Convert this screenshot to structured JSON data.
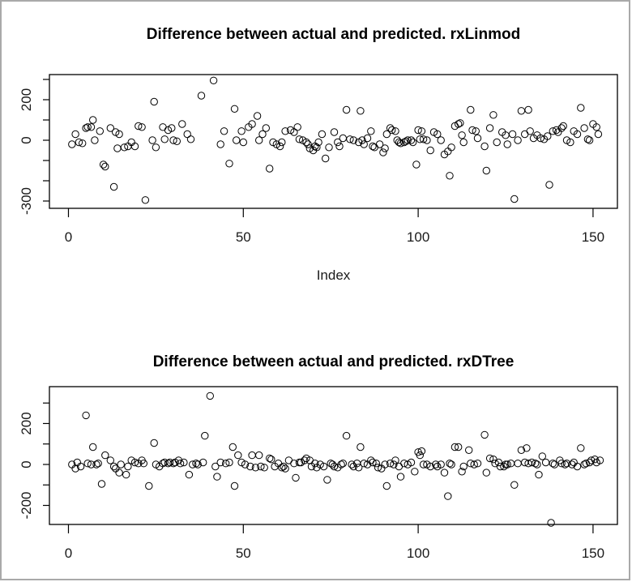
{
  "window": {
    "background": "#ffffff",
    "border_color": "#a9a9a9",
    "plot_stroke_color": "#000000",
    "marker": "open-circle"
  },
  "chart_data": [
    {
      "type": "scatter",
      "title": "Difference between actual and predicted. rxLinmod",
      "xlabel": "Index",
      "ylabel": "",
      "legend": "none",
      "grid": false,
      "xlim": [
        -5.44,
        156.97
      ],
      "ylim": [
        -336,
        324
      ],
      "x_ticks": [
        0,
        50,
        100,
        150
      ],
      "y_ticks": [
        300,
        200,
        100,
        0,
        -100,
        -200,
        -300
      ],
      "y_tick_labeled": [
        {
          "v": 200,
          "text": "200"
        },
        {
          "v": 0,
          "text": "0"
        },
        {
          "v": -300,
          "text": "-300"
        }
      ],
      "points": [
        [
          1,
          -20
        ],
        [
          2,
          30
        ],
        [
          3,
          -10
        ],
        [
          4,
          -15
        ],
        [
          5,
          60
        ],
        [
          5.5,
          65
        ],
        [
          6.5,
          65
        ],
        [
          7,
          100
        ],
        [
          7.5,
          0
        ],
        [
          9,
          45
        ],
        [
          10,
          -120
        ],
        [
          10.5,
          -130
        ],
        [
          12,
          60
        ],
        [
          13,
          -230
        ],
        [
          13.5,
          40
        ],
        [
          14,
          -40
        ],
        [
          14.5,
          30
        ],
        [
          16,
          -35
        ],
        [
          17,
          -30
        ],
        [
          18,
          -10
        ],
        [
          19,
          -30
        ],
        [
          20,
          70
        ],
        [
          21,
          65
        ],
        [
          22,
          -295
        ],
        [
          24,
          0
        ],
        [
          24.5,
          190
        ],
        [
          25,
          -35
        ],
        [
          27,
          65
        ],
        [
          27.5,
          5
        ],
        [
          28.5,
          50
        ],
        [
          29.5,
          60
        ],
        [
          30,
          0
        ],
        [
          31,
          -5
        ],
        [
          32.5,
          80
        ],
        [
          34,
          30
        ],
        [
          35,
          5
        ],
        [
          38,
          220
        ],
        [
          41.5,
          295
        ],
        [
          43.5,
          -20
        ],
        [
          44.5,
          45
        ],
        [
          46,
          -115
        ],
        [
          47.5,
          155
        ],
        [
          48,
          0
        ],
        [
          49.5,
          45
        ],
        [
          50,
          -10
        ],
        [
          51.5,
          65
        ],
        [
          52.5,
          80
        ],
        [
          54,
          120
        ],
        [
          54.5,
          0
        ],
        [
          55.5,
          30
        ],
        [
          56.5,
          60
        ],
        [
          57.5,
          -140
        ],
        [
          58.5,
          -10
        ],
        [
          59.5,
          -20
        ],
        [
          60.5,
          -30
        ],
        [
          61,
          -10
        ],
        [
          62,
          45
        ],
        [
          63.5,
          50
        ],
        [
          64.5,
          40
        ],
        [
          65.5,
          65
        ],
        [
          66,
          5
        ],
        [
          67,
          0
        ],
        [
          68,
          -10
        ],
        [
          68.5,
          -20
        ],
        [
          69,
          -40
        ],
        [
          70,
          -50
        ],
        [
          70.5,
          -30
        ],
        [
          71,
          -35
        ],
        [
          71.5,
          -10
        ],
        [
          72.5,
          30
        ],
        [
          73.5,
          -90
        ],
        [
          74.5,
          -35
        ],
        [
          76,
          40
        ],
        [
          77,
          -10
        ],
        [
          77.5,
          -30
        ],
        [
          78.5,
          10
        ],
        [
          79.5,
          150
        ],
        [
          80.5,
          5
        ],
        [
          81.5,
          0
        ],
        [
          83,
          -10
        ],
        [
          83.5,
          145
        ],
        [
          84,
          0
        ],
        [
          84.5,
          -20
        ],
        [
          85.5,
          10
        ],
        [
          86.5,
          45
        ],
        [
          87,
          -30
        ],
        [
          87.5,
          -35
        ],
        [
          89,
          -20
        ],
        [
          90,
          -60
        ],
        [
          90.5,
          -40
        ],
        [
          91,
          30
        ],
        [
          92,
          60
        ],
        [
          92.5,
          50
        ],
        [
          93.5,
          45
        ],
        [
          94,
          0
        ],
        [
          94.5,
          -10
        ],
        [
          95,
          -15
        ],
        [
          96,
          -10
        ],
        [
          96.5,
          -5
        ],
        [
          97,
          0
        ],
        [
          98,
          0
        ],
        [
          98.5,
          -10
        ],
        [
          99.5,
          -120
        ],
        [
          100,
          50
        ],
        [
          100.5,
          5
        ],
        [
          101,
          45
        ],
        [
          101.5,
          5
        ],
        [
          102.5,
          0
        ],
        [
          103.5,
          -50
        ],
        [
          104.5,
          40
        ],
        [
          105.5,
          30
        ],
        [
          106.5,
          0
        ],
        [
          107.5,
          -70
        ],
        [
          108.5,
          -55
        ],
        [
          109,
          -175
        ],
        [
          109.5,
          -35
        ],
        [
          110.5,
          70
        ],
        [
          111.5,
          80
        ],
        [
          112,
          85
        ],
        [
          112.5,
          25
        ],
        [
          113,
          -10
        ],
        [
          115,
          150
        ],
        [
          115.5,
          50
        ],
        [
          116.5,
          45
        ],
        [
          117,
          10
        ],
        [
          119,
          -30
        ],
        [
          119.5,
          -150
        ],
        [
          120.5,
          60
        ],
        [
          121.5,
          125
        ],
        [
          122.5,
          -10
        ],
        [
          124,
          40
        ],
        [
          125,
          25
        ],
        [
          125.5,
          -20
        ],
        [
          127,
          30
        ],
        [
          127.5,
          -290
        ],
        [
          128.5,
          0
        ],
        [
          129.5,
          145
        ],
        [
          130.5,
          30
        ],
        [
          131.5,
          150
        ],
        [
          132,
          45
        ],
        [
          133,
          10
        ],
        [
          134,
          25
        ],
        [
          135,
          10
        ],
        [
          136,
          5
        ],
        [
          137,
          20
        ],
        [
          137.5,
          -220
        ],
        [
          138.5,
          45
        ],
        [
          139.5,
          50
        ],
        [
          140,
          40
        ],
        [
          141,
          60
        ],
        [
          141.5,
          70
        ],
        [
          142.5,
          0
        ],
        [
          143.5,
          -10
        ],
        [
          144.5,
          45
        ],
        [
          145.5,
          30
        ],
        [
          146.5,
          160
        ],
        [
          147.5,
          60
        ],
        [
          148.5,
          5
        ],
        [
          149,
          0
        ],
        [
          150,
          80
        ],
        [
          151,
          65
        ],
        [
          151.5,
          30
        ]
      ]
    },
    {
      "type": "scatter",
      "title": "Difference between actual and predicted. rxDTree",
      "xlabel": "",
      "ylabel": "",
      "legend": "none",
      "grid": false,
      "xlim": [
        -5.44,
        156.97
      ],
      "ylim": [
        -293,
        380
      ],
      "x_ticks": [
        0,
        50,
        100,
        150
      ],
      "y_ticks": [
        300,
        200,
        100,
        0,
        -100,
        -200
      ],
      "y_tick_labeled": [
        {
          "v": 200,
          "text": "200"
        },
        {
          "v": 0,
          "text": "0"
        },
        {
          "v": -200,
          "text": "-200"
        }
      ],
      "points": [
        [
          1,
          0
        ],
        [
          2,
          -20
        ],
        [
          2.5,
          10
        ],
        [
          3.5,
          -10
        ],
        [
          5,
          240
        ],
        [
          5.5,
          5
        ],
        [
          6.5,
          0
        ],
        [
          7,
          85
        ],
        [
          8,
          0
        ],
        [
          8.5,
          5
        ],
        [
          9.5,
          -95
        ],
        [
          10.5,
          45
        ],
        [
          12,
          20
        ],
        [
          13,
          -10
        ],
        [
          13.5,
          -20
        ],
        [
          14.5,
          -40
        ],
        [
          15,
          0
        ],
        [
          16.5,
          -50
        ],
        [
          17,
          -10
        ],
        [
          18,
          20
        ],
        [
          19,
          10
        ],
        [
          20,
          5
        ],
        [
          21,
          20
        ],
        [
          21.5,
          5
        ],
        [
          23,
          -105
        ],
        [
          24.5,
          105
        ],
        [
          25,
          0
        ],
        [
          26,
          -10
        ],
        [
          27,
          5
        ],
        [
          27.5,
          10
        ],
        [
          28.5,
          5
        ],
        [
          29,
          10
        ],
        [
          30,
          5
        ],
        [
          30.5,
          10
        ],
        [
          31.5,
          20
        ],
        [
          32,
          5
        ],
        [
          33,
          10
        ],
        [
          34.5,
          -50
        ],
        [
          35.5,
          0
        ],
        [
          36.5,
          5
        ],
        [
          37,
          0
        ],
        [
          38.5,
          10
        ],
        [
          39,
          140
        ],
        [
          40.5,
          335
        ],
        [
          42,
          -10
        ],
        [
          42.5,
          -60
        ],
        [
          43.5,
          10
        ],
        [
          45,
          5
        ],
        [
          46,
          10
        ],
        [
          47,
          85
        ],
        [
          47.5,
          -105
        ],
        [
          48.5,
          45
        ],
        [
          49.5,
          10
        ],
        [
          50.5,
          0
        ],
        [
          52,
          -10
        ],
        [
          52.5,
          45
        ],
        [
          53.5,
          -15
        ],
        [
          54.5,
          45
        ],
        [
          55,
          -10
        ],
        [
          56,
          -15
        ],
        [
          57.5,
          30
        ],
        [
          58,
          25
        ],
        [
          59,
          -10
        ],
        [
          60,
          5
        ],
        [
          61,
          -15
        ],
        [
          61.5,
          -10
        ],
        [
          62,
          -20
        ],
        [
          63,
          20
        ],
        [
          64.5,
          5
        ],
        [
          65,
          -65
        ],
        [
          66,
          10
        ],
        [
          66.5,
          10
        ],
        [
          67.5,
          20
        ],
        [
          68,
          30
        ],
        [
          69,
          20
        ],
        [
          69.5,
          -10
        ],
        [
          70.5,
          5
        ],
        [
          71,
          -15
        ],
        [
          72,
          0
        ],
        [
          73,
          -10
        ],
        [
          74,
          -75
        ],
        [
          75,
          5
        ],
        [
          75.5,
          0
        ],
        [
          76,
          -10
        ],
        [
          77,
          -15
        ],
        [
          78,
          0
        ],
        [
          78.5,
          5
        ],
        [
          79.5,
          140
        ],
        [
          81,
          0
        ],
        [
          81.5,
          -10
        ],
        [
          82.5,
          5
        ],
        [
          83,
          -15
        ],
        [
          83.5,
          85
        ],
        [
          84.5,
          5
        ],
        [
          85.5,
          0
        ],
        [
          86.5,
          20
        ],
        [
          87,
          10
        ],
        [
          88,
          5
        ],
        [
          88.5,
          -15
        ],
        [
          89.5,
          -20
        ],
        [
          90.5,
          0
        ],
        [
          91,
          -105
        ],
        [
          92,
          5
        ],
        [
          93,
          0
        ],
        [
          93.5,
          20
        ],
        [
          94.5,
          -10
        ],
        [
          95,
          -60
        ],
        [
          96,
          5
        ],
        [
          97,
          0
        ],
        [
          98,
          10
        ],
        [
          99,
          -35
        ],
        [
          100,
          60
        ],
        [
          100.5,
          45
        ],
        [
          101,
          65
        ],
        [
          101.5,
          0
        ],
        [
          102.5,
          0
        ],
        [
          103.5,
          -10
        ],
        [
          105,
          0
        ],
        [
          105.5,
          -10
        ],
        [
          106.5,
          0
        ],
        [
          107.5,
          -40
        ],
        [
          108.5,
          -155
        ],
        [
          109,
          5
        ],
        [
          109.5,
          0
        ],
        [
          110.5,
          85
        ],
        [
          111.5,
          85
        ],
        [
          112.5,
          -35
        ],
        [
          113,
          -10
        ],
        [
          114.5,
          70
        ],
        [
          115,
          5
        ],
        [
          116,
          0
        ],
        [
          117,
          5
        ],
        [
          119,
          145
        ],
        [
          119.5,
          -40
        ],
        [
          120.5,
          30
        ],
        [
          121.5,
          25
        ],
        [
          122,
          5
        ],
        [
          123,
          10
        ],
        [
          123.5,
          -10
        ],
        [
          124.5,
          -10
        ],
        [
          125,
          0
        ],
        [
          125.5,
          0
        ],
        [
          126.5,
          5
        ],
        [
          127.5,
          -100
        ],
        [
          128.5,
          5
        ],
        [
          129.5,
          70
        ],
        [
          130.5,
          10
        ],
        [
          131,
          80
        ],
        [
          131.5,
          5
        ],
        [
          132.5,
          10
        ],
        [
          133.5,
          5
        ],
        [
          134,
          0
        ],
        [
          134.5,
          -50
        ],
        [
          135.5,
          40
        ],
        [
          136.5,
          10
        ],
        [
          138,
          -285
        ],
        [
          138.5,
          5
        ],
        [
          139,
          0
        ],
        [
          140.5,
          20
        ],
        [
          141,
          5
        ],
        [
          142,
          0
        ],
        [
          142.5,
          5
        ],
        [
          144,
          0
        ],
        [
          144.5,
          10
        ],
        [
          145.5,
          -10
        ],
        [
          146.5,
          80
        ],
        [
          147.5,
          0
        ],
        [
          148,
          5
        ],
        [
          149,
          10
        ],
        [
          149.5,
          20
        ],
        [
          150.5,
          25
        ],
        [
          151,
          10
        ],
        [
          152,
          20
        ]
      ]
    }
  ]
}
